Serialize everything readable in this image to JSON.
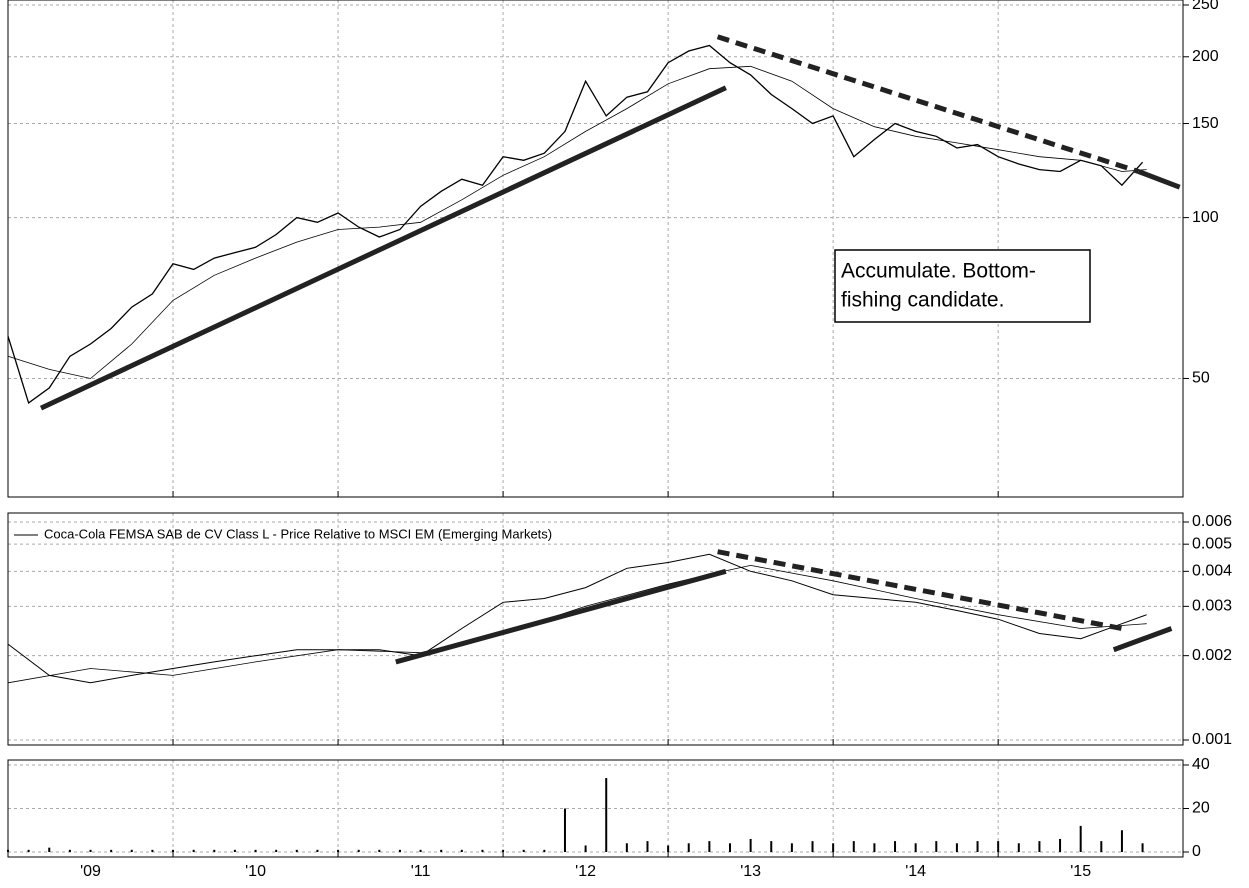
{
  "chart_data": [
    {
      "type": "line",
      "log_y": true,
      "grid": true,
      "xlim": [
        2009,
        2016.12
      ],
      "ylim": [
        30,
        250
      ],
      "yticks": [
        50,
        100,
        150,
        200,
        250
      ],
      "series": [
        {
          "color": "#000000",
          "width": 1.3,
          "x": [
            2009,
            2009.125,
            2009.25,
            2009.375,
            2009.5,
            2009.625,
            2009.75,
            2009.875,
            2010,
            2010.125,
            2010.25,
            2010.375,
            2010.5,
            2010.625,
            2010.75,
            2010.875,
            2011,
            2011.125,
            2011.25,
            2011.375,
            2011.5,
            2011.625,
            2011.75,
            2011.875,
            2012,
            2012.125,
            2012.25,
            2012.375,
            2012.5,
            2012.625,
            2012.75,
            2012.875,
            2013,
            2013.125,
            2013.25,
            2013.375,
            2013.5,
            2013.625,
            2013.75,
            2013.875,
            2014,
            2014.125,
            2014.25,
            2014.375,
            2014.5,
            2014.625,
            2014.75,
            2014.875,
            2015,
            2015.125,
            2015.25,
            2015.375,
            2015.5,
            2015.625,
            2015.75,
            2015.875
          ],
          "values": [
            60,
            45,
            48,
            55,
            58,
            62,
            68,
            72,
            82,
            80,
            84,
            86,
            88,
            93,
            100,
            98,
            102,
            96,
            92,
            95,
            105,
            112,
            118,
            115,
            130,
            128,
            132,
            145,
            180,
            155,
            168,
            172,
            195,
            205,
            210,
            195,
            185,
            170,
            160,
            150,
            155,
            130,
            140,
            150,
            145,
            142,
            135,
            137,
            130,
            126,
            123,
            122,
            128,
            125,
            115,
            127
          ]
        },
        {
          "color": "#000000",
          "width": 0.8,
          "x": [
            2009,
            2009.25,
            2009.5,
            2009.75,
            2010,
            2010.25,
            2010.5,
            2010.75,
            2011,
            2011.25,
            2011.5,
            2011.75,
            2012,
            2012.25,
            2012.5,
            2012.75,
            2013,
            2013.25,
            2013.5,
            2013.75,
            2014,
            2014.25,
            2014.5,
            2014.75,
            2015,
            2015.25,
            2015.5,
            2015.75,
            2015.9
          ],
          "values": [
            55,
            52,
            50,
            58,
            70,
            78,
            84,
            90,
            95,
            96,
            98,
            108,
            120,
            130,
            145,
            160,
            178,
            190,
            192,
            180,
            160,
            148,
            142,
            138,
            134,
            130,
            128,
            122,
            123
          ]
        }
      ],
      "trendlines": [
        {
          "x": [
            2009.2,
            2013.35
          ],
          "y": [
            44,
            175
          ],
          "dash": false
        },
        {
          "x": [
            2013.3,
            2015.85
          ],
          "y": [
            218,
            122
          ],
          "dash": true
        },
        {
          "x": [
            2015.85,
            2016.1
          ],
          "y": [
            122,
            114
          ],
          "dash": false
        }
      ],
      "annotation": [
        "Accumulate. Bottom-",
        "fishing candidate."
      ]
    },
    {
      "type": "line",
      "log_y": true,
      "grid": true,
      "xlim": [
        2009,
        2016.12
      ],
      "ylim": [
        0.001,
        0.006
      ],
      "yticks": [
        0.001,
        0.002,
        0.003,
        0.004,
        0.005,
        0.006
      ],
      "series": [
        {
          "name": "Coca-Cola FEMSA SAB de CV Class L - Price Relative to MSCI EM (Emerging Markets)",
          "color": "#000000",
          "width": 1,
          "x": [
            2009,
            2009.25,
            2009.5,
            2009.75,
            2010,
            2010.25,
            2010.5,
            2010.75,
            2011,
            2011.25,
            2011.5,
            2011.75,
            2012,
            2012.25,
            2012.5,
            2012.75,
            2013,
            2013.25,
            2013.5,
            2013.75,
            2014,
            2014.25,
            2014.5,
            2014.75,
            2015,
            2015.25,
            2015.5,
            2015.75,
            2015.9
          ],
          "values": [
            0.0022,
            0.0017,
            0.0016,
            0.0017,
            0.0018,
            0.0019,
            0.002,
            0.0021,
            0.0021,
            0.0021,
            0.002,
            0.0025,
            0.0031,
            0.0032,
            0.0035,
            0.0041,
            0.0043,
            0.0046,
            0.004,
            0.0037,
            0.0033,
            0.0032,
            0.0031,
            0.0029,
            0.0027,
            0.0024,
            0.0023,
            0.0026,
            0.0028
          ]
        },
        {
          "color": "#000000",
          "width": 0.8,
          "x": [
            2009,
            2009.5,
            2010,
            2010.5,
            2011,
            2011.5,
            2012,
            2012.5,
            2013,
            2013.25,
            2013.5,
            2014,
            2014.5,
            2015,
            2015.5,
            2015.9
          ],
          "values": [
            0.0016,
            0.0018,
            0.0017,
            0.0019,
            0.0021,
            0.00205,
            0.0024,
            0.003,
            0.0036,
            0.0039,
            0.0042,
            0.0037,
            0.0032,
            0.0028,
            0.0025,
            0.0026
          ]
        }
      ],
      "trendlines": [
        {
          "x": [
            2011.35,
            2013.35
          ],
          "y": [
            0.0019,
            0.004
          ],
          "dash": false
        },
        {
          "x": [
            2013.3,
            2015.75
          ],
          "y": [
            0.0047,
            0.0025
          ],
          "dash": true
        },
        {
          "x": [
            2015.7,
            2016.05
          ],
          "y": [
            0.0021,
            0.0025
          ],
          "dash": false
        }
      ]
    },
    {
      "type": "bar",
      "grid": true,
      "color": "#000000",
      "xlim": [
        2009,
        2016.12
      ],
      "ylim": [
        0,
        40
      ],
      "yticks": [
        0,
        20,
        40
      ],
      "xticks": [
        {
          "value": 2009,
          "label": "'09"
        },
        {
          "value": 2010,
          "label": "'10"
        },
        {
          "value": 2011,
          "label": "'11"
        },
        {
          "value": 2012,
          "label": "'12"
        },
        {
          "value": 2013,
          "label": "'13"
        },
        {
          "value": 2014,
          "label": "'14"
        },
        {
          "value": 2015,
          "label": "'15"
        }
      ],
      "x": [
        2009,
        2009.125,
        2009.25,
        2009.375,
        2009.5,
        2009.625,
        2009.75,
        2009.875,
        2010,
        2010.125,
        2010.25,
        2010.375,
        2010.5,
        2010.625,
        2010.75,
        2010.875,
        2011,
        2011.125,
        2011.25,
        2011.375,
        2011.5,
        2011.625,
        2011.75,
        2011.875,
        2012,
        2012.125,
        2012.25,
        2012.375,
        2012.5,
        2012.625,
        2012.75,
        2012.875,
        2013,
        2013.125,
        2013.25,
        2013.375,
        2013.5,
        2013.625,
        2013.75,
        2013.875,
        2014,
        2014.125,
        2014.25,
        2014.375,
        2014.5,
        2014.625,
        2014.75,
        2014.875,
        2015,
        2015.125,
        2015.25,
        2015.375,
        2015.5,
        2015.625,
        2015.75,
        2015.875
      ],
      "values": [
        1,
        1,
        2,
        1,
        1,
        1,
        1,
        1,
        1,
        1,
        1,
        1,
        1,
        1,
        1,
        1,
        1,
        1,
        1,
        1,
        1,
        1,
        1,
        1,
        1,
        1,
        1,
        20,
        3,
        34,
        4,
        5,
        3,
        4,
        5,
        4,
        6,
        5,
        4,
        5,
        4,
        5,
        4,
        5,
        4,
        5,
        4,
        5,
        5,
        4,
        5,
        6,
        12,
        5,
        10,
        4
      ]
    }
  ]
}
